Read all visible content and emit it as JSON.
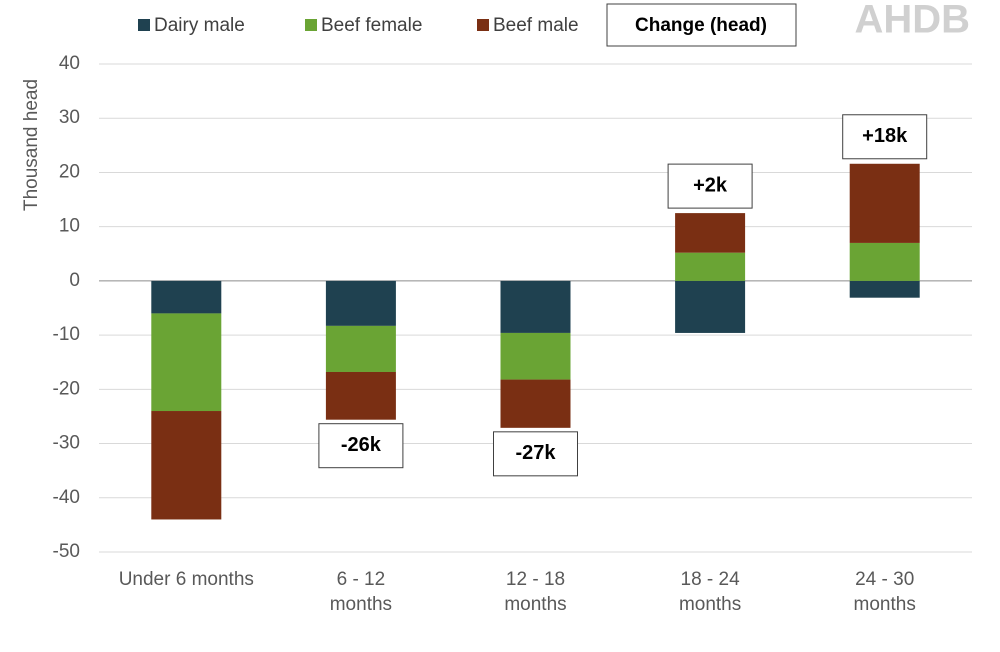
{
  "chart_data": {
    "type": "stacked_bar",
    "logo": "AHDB",
    "ylabel": "Thousand head",
    "categories": [
      [
        "Under 6 months"
      ],
      [
        "6 - 12",
        "months"
      ],
      [
        "12 - 18",
        "months"
      ],
      [
        "18 - 24",
        "months"
      ],
      [
        "24 - 30",
        "months"
      ]
    ],
    "series": [
      {
        "name": "Dairy male",
        "color": "#1f4150",
        "values": [
          -6,
          -8.3,
          -9.6,
          -9.6,
          -3.1
        ]
      },
      {
        "name": "Beef female",
        "color": "#6aa434",
        "values": [
          -18,
          -8.5,
          -8.6,
          5.2,
          7
        ]
      },
      {
        "name": "Beef male",
        "color": "#7a2f13",
        "values": [
          -20,
          -8.8,
          -8.9,
          7.3,
          14.6
        ]
      }
    ],
    "change": {
      "name": "Change (head)",
      "values": [
        null,
        -26,
        -27,
        2,
        18
      ],
      "value_labels": [
        null,
        "-26k",
        "-27k",
        "+2k",
        "+18k"
      ]
    },
    "ylim": [
      -50,
      40
    ],
    "yticks": [
      -50,
      -40,
      -30,
      -20,
      -10,
      0,
      10,
      20,
      30,
      40
    ],
    "grid": true
  }
}
